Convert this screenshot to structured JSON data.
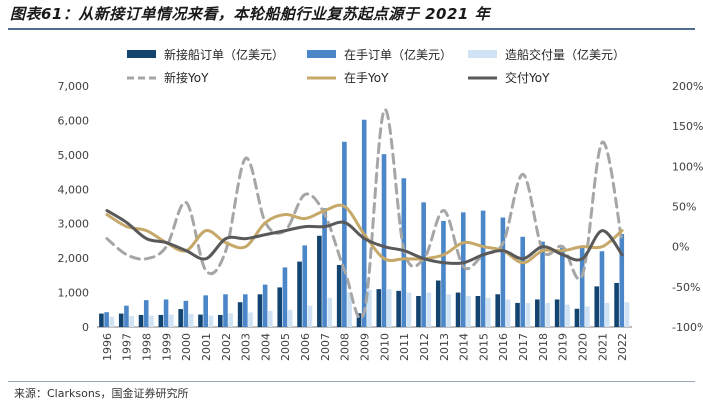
{
  "title": "图表61：从新接订单情况来看，本轮船舶行业复苏起点源于 2021 年",
  "source": "来源：Clarksons，国金证券研究所",
  "colors": {
    "new_orders": "#12446f",
    "order_book": "#4a86c8",
    "deliveries": "#cfe3f4",
    "new_yoy": "#a6a6a6",
    "book_yoy": "#c6a868",
    "deliv_yoy": "#595959"
  },
  "chart_data": {
    "type": "bar+line",
    "categories": [
      "1996",
      "1997",
      "1998",
      "1999",
      "2000",
      "2001",
      "2002",
      "2003",
      "2004",
      "2005",
      "2006",
      "2007",
      "2008",
      "2009",
      "2010",
      "2011",
      "2012",
      "2013",
      "2014",
      "2015",
      "2016",
      "2017",
      "2018",
      "2019",
      "2020",
      "2021",
      "2022"
    ],
    "y_left_ticks": [
      "0",
      "1,000",
      "2,000",
      "3,000",
      "4,000",
      "5,000",
      "6,000",
      "7,000"
    ],
    "y_right_ticks": [
      "-100%",
      "-50%",
      "0%",
      "50%",
      "100%",
      "150%",
      "200%"
    ],
    "y_left_range": [
      0,
      7000
    ],
    "y_right_range": [
      -100,
      200
    ],
    "legend_position": "top",
    "bar_series": [
      {
        "name": "新接船订单（亿美元）",
        "color_key": "new_orders",
        "values": [
          390,
          390,
          350,
          350,
          520,
          360,
          350,
          720,
          950,
          1150,
          1900,
          2650,
          1800,
          400,
          1100,
          1050,
          900,
          1350,
          1000,
          900,
          950,
          700,
          800,
          800,
          530,
          1180,
          1280
        ]
      },
      {
        "name": "在手订单（亿美元）",
        "color_key": "order_book",
        "values": [
          430,
          620,
          780,
          800,
          760,
          920,
          950,
          950,
          1230,
          1730,
          2370,
          3450,
          5380,
          6020,
          5020,
          4320,
          3620,
          3080,
          3330,
          3380,
          3180,
          2620,
          2480,
          2300,
          2300,
          2200,
          2700
        ]
      },
      {
        "name": "造船交付量（亿美元）",
        "color_key": "deliveries",
        "values": [
          300,
          320,
          330,
          360,
          380,
          330,
          400,
          420,
          470,
          500,
          620,
          850,
          1000,
          1080,
          1100,
          1000,
          1000,
          950,
          900,
          850,
          800,
          700,
          700,
          650,
          600,
          700,
          720
        ]
      }
    ],
    "line_series": [
      {
        "name": "新接YoY",
        "color_key": "new_yoy",
        "dashed": true,
        "values": [
          10,
          -10,
          -15,
          0,
          55,
          -30,
          -5,
          110,
          30,
          20,
          65,
          40,
          -30,
          -80,
          170,
          -5,
          -15,
          45,
          -25,
          -10,
          5,
          90,
          -5,
          0,
          -35,
          130,
          5
        ]
      },
      {
        "name": "在手YoY",
        "color_key": "book_yoy",
        "dashed": false,
        "values": [
          40,
          25,
          20,
          5,
          -5,
          20,
          5,
          0,
          30,
          40,
          35,
          45,
          50,
          15,
          -15,
          -15,
          -15,
          -10,
          5,
          0,
          -5,
          -20,
          -5,
          -5,
          0,
          0,
          20
        ]
      },
      {
        "name": "交付YoY",
        "color_key": "deliv_yoy",
        "dashed": false,
        "values": [
          45,
          30,
          10,
          5,
          -5,
          -15,
          10,
          10,
          15,
          20,
          25,
          25,
          30,
          10,
          0,
          -5,
          -15,
          -20,
          -20,
          -10,
          -5,
          -15,
          0,
          -10,
          -15,
          20,
          -10
        ]
      }
    ]
  }
}
